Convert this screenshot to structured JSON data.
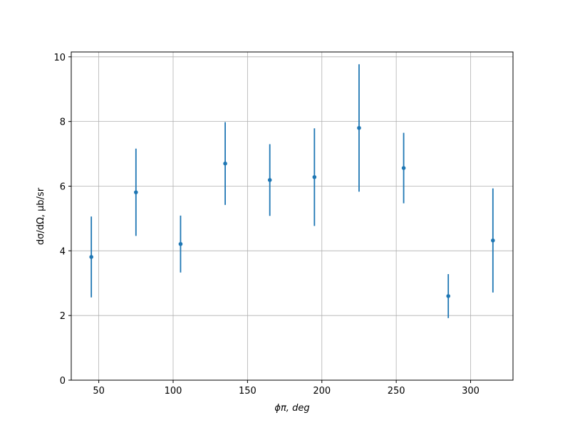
{
  "chart_data": {
    "type": "errorbar",
    "x_label": "ϕπ, deg",
    "y_label": "dσ/dΩ, μb/sr",
    "x": [
      45,
      75,
      105,
      135,
      165,
      195,
      225,
      255,
      285,
      315
    ],
    "values": [
      3.81,
      5.81,
      4.21,
      6.7,
      6.19,
      6.28,
      7.8,
      6.56,
      2.6,
      4.32
    ],
    "errors": [
      1.25,
      1.35,
      0.88,
      1.28,
      1.11,
      1.51,
      1.97,
      1.09,
      0.68,
      1.61
    ],
    "color": "#1f77b4",
    "xlim": [
      31.5,
      328.5
    ],
    "xticks": [
      50,
      100,
      150,
      200,
      250,
      300
    ],
    "ylim": [
      0,
      10.15
    ],
    "yticks": [
      0,
      2,
      4,
      6,
      8,
      10
    ],
    "grid": true
  }
}
